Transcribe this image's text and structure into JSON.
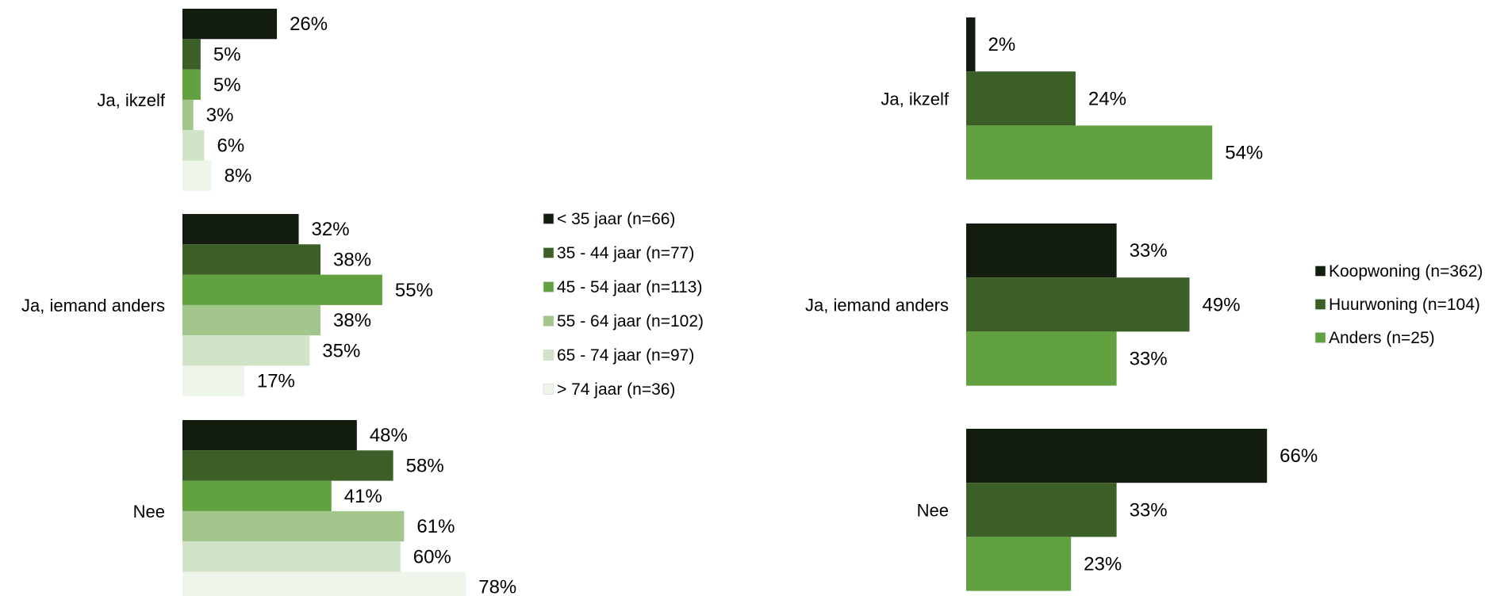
{
  "chart_data": [
    {
      "type": "bar",
      "orientation": "horizontal",
      "categories": [
        "Ja, ikzelf",
        "Ja, iemand anders",
        "Nee"
      ],
      "series": [
        {
          "name": "< 35 jaar (n=66)",
          "values": [
            26,
            32,
            48
          ],
          "labels": [
            "26%",
            "32%",
            "48%"
          ],
          "color": "#131d0f"
        },
        {
          "name": "35 - 44 jaar (n=77)",
          "values": [
            5,
            38,
            58
          ],
          "labels": [
            "5%",
            "38%",
            "58%"
          ],
          "color": "#3c5e27"
        },
        {
          "name": "45 - 54 jaar (n=113)",
          "values": [
            5,
            55,
            41
          ],
          "labels": [
            "5%",
            "55%",
            "41%"
          ],
          "color": "#62a140"
        },
        {
          "name": "55 - 64 jaar (n=102)",
          "values": [
            3,
            38,
            61
          ],
          "labels": [
            "3%",
            "38%",
            "61%"
          ],
          "color": "#a2c68c"
        },
        {
          "name": "65 - 74 jaar (n=97)",
          "values": [
            6,
            35,
            60
          ],
          "labels": [
            "6%",
            "35%",
            "60%"
          ],
          "color": "#d1e4c7"
        },
        {
          "name": "> 74 jaar (n=36)",
          "values": [
            8,
            17,
            78
          ],
          "labels": [
            "8%",
            "17%",
            "78%"
          ],
          "color": "#eef5ea"
        }
      ],
      "xlim": [
        0,
        100
      ],
      "grid": false,
      "legend": "right"
    },
    {
      "type": "bar",
      "orientation": "horizontal",
      "categories": [
        "Ja, ikzelf",
        "Ja, iemand anders",
        "Nee"
      ],
      "series": [
        {
          "name": "Koopwoning (n=362)",
          "values": [
            2,
            33,
            66
          ],
          "labels": [
            "2%",
            "33%",
            "66%"
          ],
          "color": "#131d0f"
        },
        {
          "name": "Huurwoning (n=104)",
          "values": [
            24,
            49,
            33
          ],
          "labels": [
            "24%",
            "49%",
            "33%"
          ],
          "color": "#3c5e27"
        },
        {
          "name": "Anders (n=25)",
          "values": [
            54,
            33,
            23
          ],
          "labels": [
            "54%",
            "33%",
            "23%"
          ],
          "color": "#62a140"
        }
      ],
      "xlim": [
        0,
        100
      ],
      "grid": false,
      "legend": "right"
    }
  ]
}
